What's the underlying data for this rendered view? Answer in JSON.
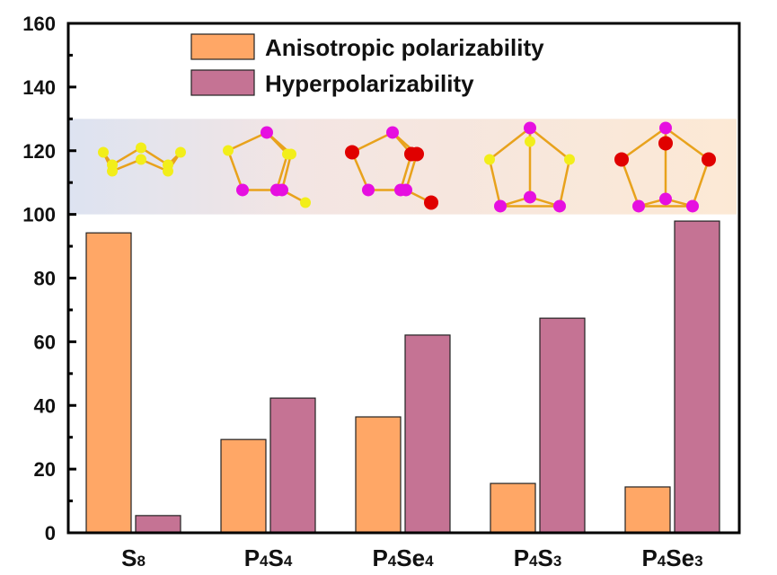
{
  "chart_data": {
    "type": "bar",
    "title": "",
    "xlabel": "",
    "ylabel": "",
    "ylim": [
      0,
      160
    ],
    "yticks": [
      0,
      20,
      40,
      60,
      80,
      100,
      120,
      140,
      160
    ],
    "categories": [
      {
        "base": "S",
        "sub": "8"
      },
      {
        "base": "P",
        "sub": "4",
        "base2": "S",
        "sub2": "4"
      },
      {
        "base": "P",
        "sub": "4",
        "base2": "Se",
        "sub2": "4"
      },
      {
        "base": "P",
        "sub": "4",
        "base2": "S",
        "sub2": "3"
      },
      {
        "base": "P",
        "sub": "4",
        "base2": "Se",
        "sub2": "3"
      }
    ],
    "category_names": [
      "S8",
      "P4S4",
      "P4Se4",
      "P4S3",
      "P4Se3"
    ],
    "series": [
      {
        "name": "Anisotropic polarizability",
        "color": "#FFA766",
        "values": [
          94.2,
          29.3,
          36.4,
          15.5,
          14.4
        ]
      },
      {
        "name": "Hyperpolarizability",
        "color": "#C57394",
        "values": [
          5.4,
          42.3,
          62.1,
          67.4,
          97.9
        ]
      }
    ],
    "legend": {
      "position": "top-center"
    },
    "grid": false,
    "inset": {
      "description": "molecular structure images band spanning y 100–130",
      "yrange": [
        100,
        130
      ],
      "molecules": [
        "S8",
        "P4S4",
        "P4Se4",
        "P4S3",
        "P4Se3"
      ],
      "atom_colors": {
        "S": "#F2EE1A",
        "P": "#E60FE0",
        "Se": "#E00000",
        "bond": "#E8A21C"
      }
    }
  }
}
